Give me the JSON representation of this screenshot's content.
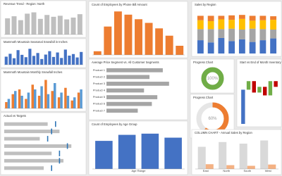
{
  "chart_data": [
    {
      "type": "bar",
      "title": "Revenue Trend - Region: North",
      "values": [
        62,
        70,
        55,
        80,
        85,
        60,
        75,
        68,
        72,
        58,
        65,
        78
      ],
      "color": "#bfbfbf",
      "ylim": [
        0,
        100
      ]
    },
    {
      "type": "bar",
      "title": "Mammoth Mountain Seasonal Snowfall in Inches",
      "values": [
        310,
        420,
        250,
        560,
        380,
        290,
        610,
        340,
        450,
        220,
        390,
        520,
        300,
        470,
        260,
        580,
        350,
        410,
        280,
        490
      ],
      "color": "#4472c4",
      "ylim": [
        0,
        700
      ]
    },
    {
      "type": "bar",
      "title": "Mammoth Mountain Monthly Snowfall Inches",
      "series": [
        {
          "color": "#ed7d31",
          "values": [
            20,
            45,
            60,
            30,
            75,
            40,
            90,
            55,
            35,
            65,
            25,
            50
          ]
        },
        {
          "color": "#5b9bd5",
          "values": [
            30,
            55,
            40,
            50,
            60,
            70,
            45,
            80,
            50,
            40,
            35,
            60
          ]
        }
      ],
      "ylim": [
        0,
        100
      ]
    },
    {
      "type": "bullet",
      "title": "Actual vs Targets",
      "values": [
        55,
        70,
        45,
        85,
        60,
        75,
        50
      ],
      "targets": [
        65,
        60,
        55,
        80,
        70,
        70,
        60
      ],
      "xlim": [
        0,
        100
      ],
      "color": "#bfbfbf",
      "target_color": "#2e75b6"
    },
    {
      "type": "bar",
      "title": "Count of Employees by Phone Bill Amount",
      "values": [
        8,
        62,
        95,
        88,
        78,
        70,
        58,
        42,
        20
      ],
      "color": "#ed7d31",
      "ylim": [
        0,
        100
      ]
    },
    {
      "type": "hbar",
      "title": "Average Price Segment vs. All Customer Segments",
      "categories": [
        "Product 1",
        "Product 2",
        "Product 3",
        "Product 4",
        "Product 5",
        "Product 6",
        "Product 7"
      ],
      "values": [
        72,
        55,
        80,
        48,
        65,
        58,
        40
      ],
      "xlim": [
        0,
        100
      ],
      "color": "#a5a5a5"
    },
    {
      "type": "bar",
      "title": "Count of Employees by Age Group",
      "xlabel": "Age Range",
      "values": [
        70,
        85,
        88,
        78
      ],
      "color": "#4472c4",
      "ylim": [
        0,
        100
      ]
    },
    {
      "type": "donut",
      "title": "Progress Chart",
      "values": [
        100
      ],
      "value_labels": [
        "100%"
      ],
      "color": "#70ad47"
    },
    {
      "type": "donut",
      "title": "Progress Chart",
      "values": [
        60
      ],
      "value_labels": [
        "60%"
      ],
      "color": "#ed7d31"
    },
    {
      "type": "stacked",
      "title": "Sales by Region",
      "series": [
        {
          "color": "#4472c4",
          "values": [
            30,
            25,
            35,
            28,
            32,
            26,
            30,
            34
          ]
        },
        {
          "color": "#a5a5a5",
          "values": [
            25,
            30,
            20,
            28,
            22,
            30,
            25,
            20
          ]
        },
        {
          "color": "#ffc000",
          "values": [
            20,
            18,
            22,
            20,
            24,
            18,
            20,
            22
          ]
        },
        {
          "color": "#ed7d31",
          "values": [
            10,
            12,
            8,
            10,
            9,
            11,
            10,
            8
          ]
        }
      ],
      "ylim": [
        0,
        100
      ]
    },
    {
      "type": "waterfall",
      "title": "Start vs End of Month Inventory - Actuals",
      "values": [
        60,
        15,
        -20,
        10,
        -15,
        25,
        -10
      ],
      "colors": {
        "start": "#4472c4",
        "up": "#70ad47",
        "down": "#c00000"
      },
      "ylim": [
        0,
        100
      ]
    },
    {
      "type": "bar",
      "title": "COLUMN CHART - Annual Sales by Region",
      "categories": [
        "East",
        "North",
        "South",
        "West"
      ],
      "series": [
        {
          "color": "#d9d9d9",
          "values": [
            70,
            85,
            80,
            90
          ]
        },
        {
          "color": "#f4b183",
          "values": [
            15,
            12,
            10,
            14
          ]
        }
      ],
      "ylim": [
        0,
        100
      ]
    }
  ]
}
